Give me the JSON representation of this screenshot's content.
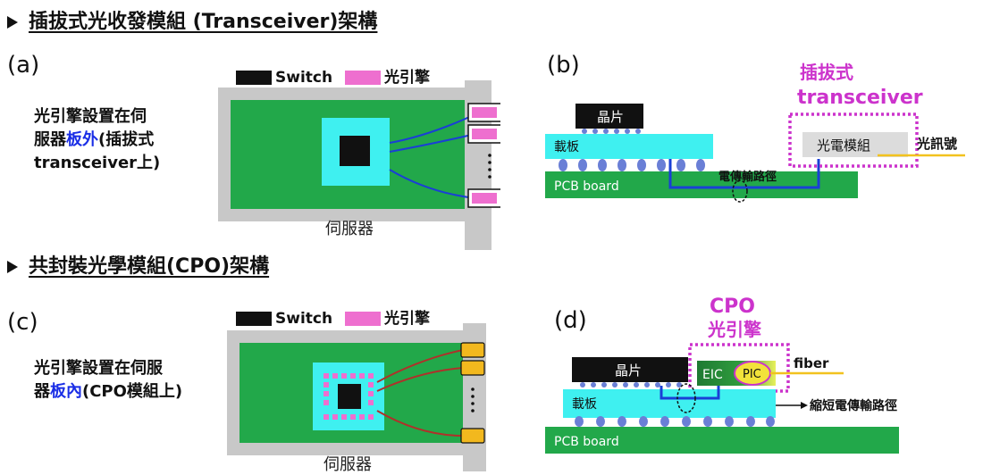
{
  "headings": {
    "transceiver": "插拔式光收發模組 (Transceiver)架構",
    "cpo": "共封裝光學模組(CPO)架構"
  },
  "panels": {
    "a": {
      "label": "(a)",
      "desc_line1": "光引擎設置在伺",
      "desc_line2_pre": "服器",
      "desc_line2_blue": "板外",
      "desc_line2_post": "(插拔式",
      "desc_line3": "transceiver上)",
      "legend_switch": "Switch",
      "legend_engine": "光引擎",
      "server_label": "伺服器"
    },
    "b": {
      "label": "(b)",
      "chip": "晶片",
      "carrier": "載板",
      "pcb": "PCB board",
      "path": "電傳輸路徑",
      "module": "光電模組",
      "signal": "光訊號",
      "box_title1": "插拔式",
      "box_title2": "transceiver"
    },
    "c": {
      "label": "(c)",
      "desc_line1": "光引擎設置在伺服",
      "desc_line2_pre": "器",
      "desc_line2_blue": "板內",
      "desc_line2_post": "(CPO模組上)",
      "legend_switch": "Switch",
      "legend_engine": "光引擎",
      "server_label": "伺服器"
    },
    "d": {
      "label": "(d)",
      "chip": "晶片",
      "carrier": "載板",
      "pcb": "PCB board",
      "eic": "EIC",
      "pic": "PIC",
      "fiber": "fiber",
      "shorten": "縮短電傳輸路徑",
      "box_title1": "CPO",
      "box_title2": "光引擎"
    }
  },
  "colors": {
    "pcb_green": "#22a84a",
    "carrier_cyan": "#3ff0f0",
    "engine_pink": "#ee6fcf",
    "cpo_connector": "#f2b81e",
    "dotted_magenta": "#cc33cc",
    "wire_blue": "#1a3fd6",
    "wire_red": "#b0302a",
    "fiber_yellow": "#f2c21e",
    "server_gray": "#c8c8c8"
  }
}
